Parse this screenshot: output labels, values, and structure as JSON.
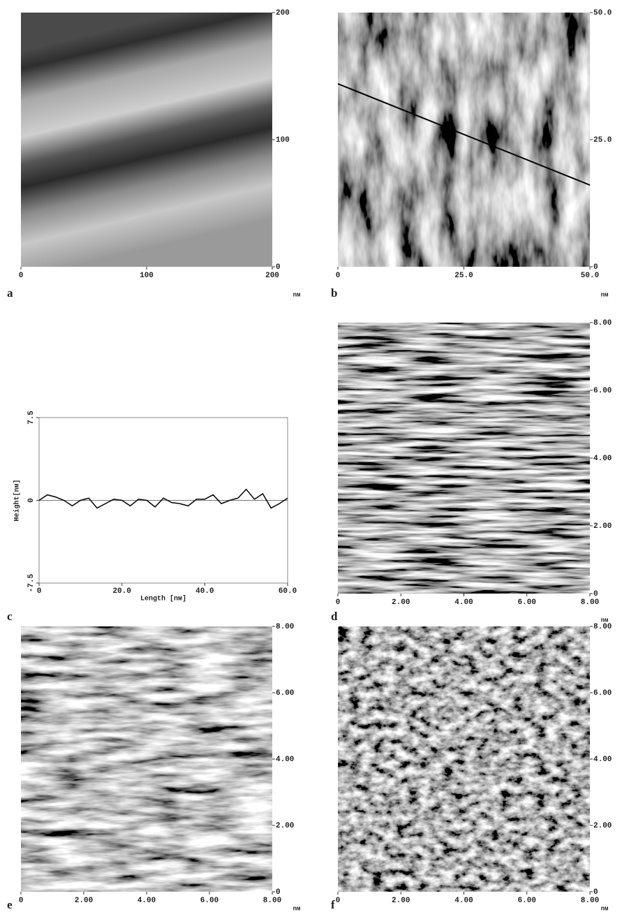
{
  "chart_data": [
    {
      "type": "image",
      "label": "a",
      "unit": "nм",
      "xlim": [
        0,
        200
      ],
      "xticks": [
        0,
        100,
        200
      ],
      "ylim": [
        0,
        200
      ],
      "yticks": [
        0,
        100,
        200
      ]
    },
    {
      "type": "image",
      "label": "b",
      "unit": "nм",
      "xlim": [
        0,
        50
      ],
      "xticks": [
        0,
        {
          "value": 25,
          "label": "25.0"
        },
        {
          "value": 50,
          "label": "50.0"
        }
      ],
      "ylim": [
        0,
        50
      ],
      "yticks": [
        0,
        {
          "value": 25,
          "label": "25.0"
        },
        {
          "value": 50,
          "label": "50.0"
        }
      ]
    },
    {
      "type": "line",
      "label": "c",
      "x_label": "Length [nм]",
      "y_label": "Height[nм]",
      "color": "#000000",
      "x": [
        0,
        2,
        4,
        6,
        8,
        10,
        12,
        14,
        16,
        18,
        20,
        22,
        24,
        26,
        28,
        30,
        32,
        34,
        36,
        38,
        40,
        42,
        44,
        46,
        48,
        50,
        52,
        54,
        56,
        58,
        60
      ],
      "values": [
        0,
        0.5,
        0.3,
        0,
        -0.5,
        0,
        0.2,
        -0.7,
        -0.3,
        0.1,
        0,
        -0.5,
        0.1,
        0,
        -0.6,
        0.2,
        -0.2,
        -0.3,
        -0.5,
        0.1,
        0.1,
        0.5,
        -0.3,
        0,
        0.2,
        1.0,
        0.1,
        0.6,
        -0.7,
        -0.3,
        0.2
      ],
      "xlim": [
        0,
        60
      ],
      "xticks": [
        0,
        {
          "value": 20,
          "label": "20.0"
        },
        {
          "value": 40,
          "label": "40.0"
        },
        {
          "value": 60,
          "label": "60.0"
        }
      ],
      "ylim": [
        -7.5,
        7.5
      ],
      "yticks": [
        -7.5,
        0,
        7.5
      ]
    },
    {
      "type": "image",
      "label": "d",
      "unit": "nм",
      "xlim": [
        0,
        8
      ],
      "xticks": [
        0,
        {
          "value": 2,
          "label": "2.00"
        },
        {
          "value": 4,
          "label": "4.00"
        },
        {
          "value": 6,
          "label": "6.00"
        },
        {
          "value": 8,
          "label": "8.00"
        }
      ],
      "ylim": [
        0,
        8
      ],
      "yticks": [
        0,
        {
          "value": 2,
          "label": "2.00"
        },
        {
          "value": 4,
          "label": "4.00"
        },
        {
          "value": 6,
          "label": "6.00"
        },
        {
          "value": 8,
          "label": "8.00"
        }
      ]
    },
    {
      "type": "image",
      "label": "e",
      "unit": "nм",
      "xlim": [
        0,
        8
      ],
      "xticks": [
        0,
        {
          "value": 2,
          "label": "2.00"
        },
        {
          "value": 4,
          "label": "4.00"
        },
        {
          "value": 6,
          "label": "6.00"
        },
        {
          "value": 8,
          "label": "8.00"
        }
      ],
      "ylim": [
        0,
        8
      ],
      "yticks": [
        0,
        {
          "value": 2,
          "label": "2.00"
        },
        {
          "value": 4,
          "label": "4.00"
        },
        {
          "value": 6,
          "label": "6.00"
        },
        {
          "value": 8,
          "label": "8.00"
        }
      ]
    },
    {
      "type": "image",
      "label": "f",
      "unit": "nм",
      "xlim": [
        0,
        8
      ],
      "xticks": [
        0,
        {
          "value": 2,
          "label": "2.00"
        },
        {
          "value": 4,
          "label": "4.00"
        },
        {
          "value": 6,
          "label": "6.00"
        },
        {
          "value": 8,
          "label": "8.00"
        }
      ],
      "ylim": [
        0,
        8
      ],
      "yticks": [
        0,
        {
          "value": 2,
          "label": "2.00"
        },
        {
          "value": 4,
          "label": "4.00"
        },
        {
          "value": 6,
          "label": "6.00"
        },
        {
          "value": 8,
          "label": "8.00"
        }
      ]
    }
  ]
}
